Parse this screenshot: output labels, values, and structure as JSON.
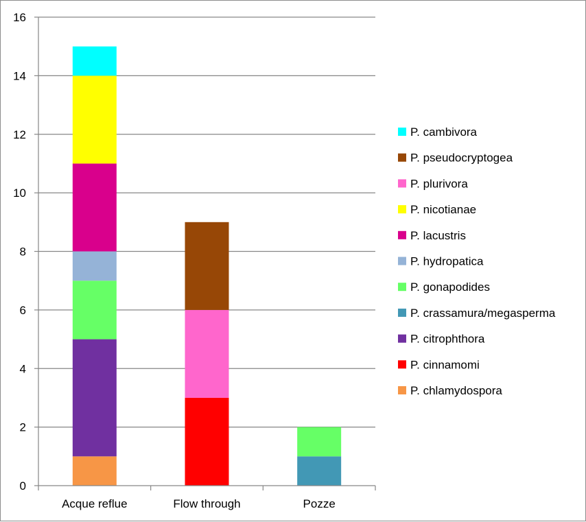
{
  "chart_data": {
    "type": "bar",
    "stacked": true,
    "categories": [
      "Acque reflue",
      "Flow through",
      "Pozze"
    ],
    "ylim": [
      0,
      16
    ],
    "yticks": [
      0,
      2,
      4,
      6,
      8,
      10,
      12,
      14,
      16
    ],
    "grid": true,
    "legend_position": "right",
    "series": [
      {
        "name": "P. chlamydospora",
        "color": "#f79646",
        "values": [
          1,
          0,
          0
        ]
      },
      {
        "name": "P. cinnamomi",
        "color": "#ff0000",
        "values": [
          0,
          3,
          0
        ]
      },
      {
        "name": "P. citrophthora",
        "color": "#7030a0",
        "values": [
          4,
          0,
          0
        ]
      },
      {
        "name": "P. crassamura/megasperma",
        "color": "#4298b5",
        "values": [
          0,
          0,
          1
        ]
      },
      {
        "name": "P. gonapodides",
        "color": "#66ff66",
        "values": [
          2,
          0,
          1
        ]
      },
      {
        "name": "P. hydropatica",
        "color": "#95b3d7",
        "values": [
          1,
          0,
          0
        ]
      },
      {
        "name": "P. lacustris",
        "color": "#d9008c",
        "values": [
          3,
          0,
          0
        ]
      },
      {
        "name": "P. nicotianae",
        "color": "#ffff00",
        "values": [
          3,
          0,
          0
        ]
      },
      {
        "name": "P. plurivora",
        "color": "#ff66cc",
        "values": [
          0,
          3,
          0
        ]
      },
      {
        "name": "P. pseudocryptogea",
        "color": "#974706",
        "values": [
          0,
          3,
          0
        ]
      },
      {
        "name": "P. cambivora",
        "color": "#00ffff",
        "values": [
          1,
          0,
          0
        ]
      }
    ]
  }
}
